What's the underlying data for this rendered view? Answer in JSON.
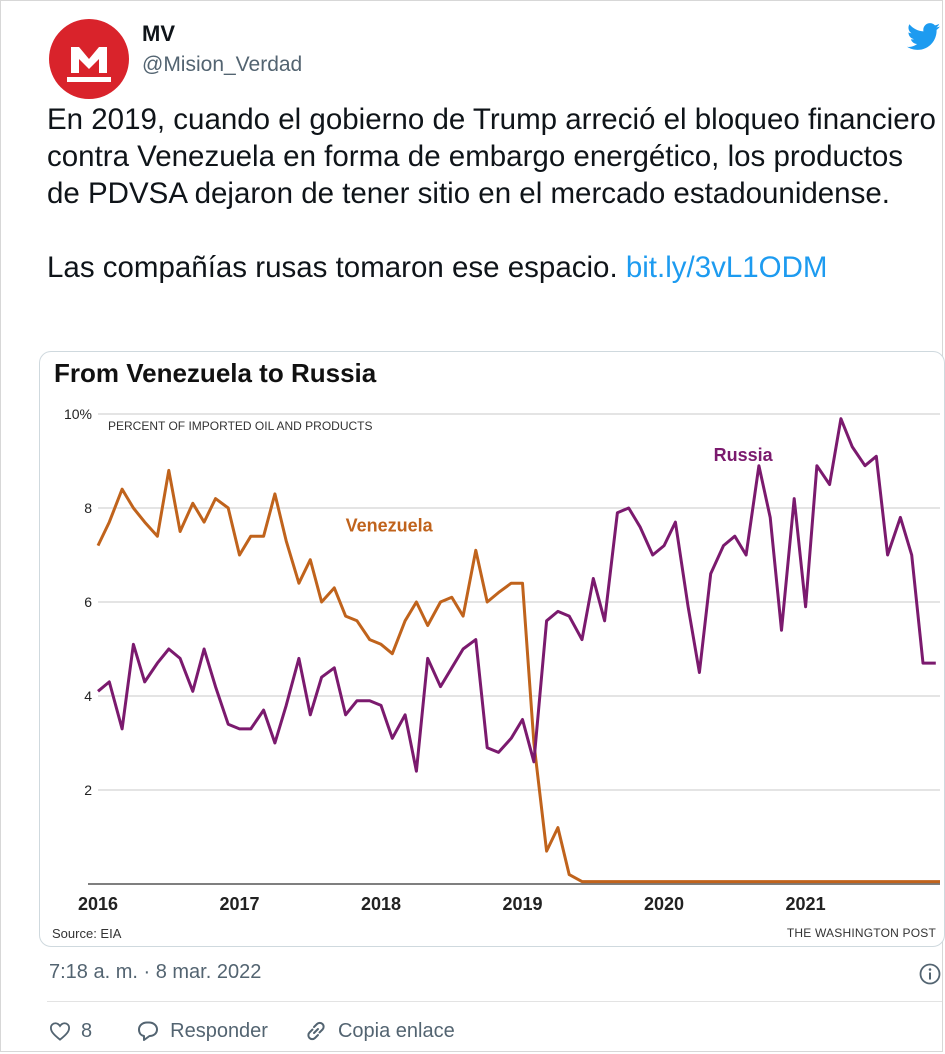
{
  "tweet": {
    "display_name": "MV",
    "handle": "@Mision_Verdad",
    "avatar_letter": "M",
    "brand_color": "#d9232b",
    "text_p1": "En 2019, cuando el gobierno de Trump arreció el bloqueo financiero contra Venezuela en forma de embargo energético, los productos de PDVSA dejaron de tener sitio en el mercado estadounidense.",
    "text_p2": "Las compañías rusas tomaron ese espacio.",
    "link": "bit.ly/3vL1ODM",
    "timestamp": "7:18 a. m. · 8 mar. 2022",
    "likes": "8",
    "reply_label": "Responder",
    "copy_link_label": "Copia enlace",
    "link_color": "#1d9bf0",
    "icons": {
      "platform": "twitter-bird-icon",
      "info": "info-icon",
      "like": "heart-icon",
      "reply": "reply-bubble-icon",
      "copy": "chain-link-icon"
    }
  },
  "chart_data": {
    "type": "line",
    "title": "From Venezuela to Russia",
    "ylabel": "PERCENT OF IMPORTED OIL AND PRODUCTS",
    "ylim": [
      0,
      10
    ],
    "xlim": [
      2016,
      2021.95
    ],
    "y_ticks": [
      2,
      4,
      6,
      8,
      10
    ],
    "y_tick_labels": [
      "2",
      "4",
      "6",
      "8",
      "10%"
    ],
    "x_ticks": [
      2016,
      2017,
      2018,
      2019,
      2020,
      2021
    ],
    "x_tick_labels": [
      "2016",
      "2017",
      "2018",
      "2019",
      "2020",
      "2021"
    ],
    "grid": true,
    "series": [
      {
        "name": "Venezuela",
        "color": "#c0631c",
        "x": [
          2016.0,
          2016.08,
          2016.17,
          2016.25,
          2016.33,
          2016.42,
          2016.5,
          2016.58,
          2016.67,
          2016.75,
          2016.83,
          2016.92,
          2017.0,
          2017.08,
          2017.17,
          2017.25,
          2017.33,
          2017.42,
          2017.5,
          2017.58,
          2017.67,
          2017.75,
          2017.83,
          2017.92,
          2018.0,
          2018.08,
          2018.17,
          2018.25,
          2018.33,
          2018.42,
          2018.5,
          2018.58,
          2018.67,
          2018.75,
          2018.83,
          2018.92,
          2019.0,
          2019.08,
          2019.17,
          2019.25,
          2019.33,
          2019.42,
          2019.5,
          2019.6,
          2019.75,
          2020.0,
          2020.5,
          2021.0,
          2021.5,
          2021.95
        ],
        "y": [
          7.2,
          7.7,
          8.4,
          8.0,
          7.7,
          7.4,
          8.8,
          7.5,
          8.1,
          7.7,
          8.2,
          8.0,
          7.0,
          7.4,
          7.4,
          8.3,
          7.3,
          6.4,
          6.9,
          6.0,
          6.3,
          5.7,
          5.6,
          5.2,
          5.1,
          4.9,
          5.6,
          6.0,
          5.5,
          6.0,
          6.1,
          5.7,
          7.1,
          6.0,
          6.2,
          6.4,
          6.4,
          3.0,
          0.7,
          1.2,
          0.2,
          0.05,
          0.05,
          0.05,
          0.05,
          0.05,
          0.05,
          0.05,
          0.05,
          0.05
        ]
      },
      {
        "name": "Russia",
        "color": "#7b1a6e",
        "x": [
          2016.0,
          2016.08,
          2016.17,
          2016.25,
          2016.33,
          2016.42,
          2016.5,
          2016.58,
          2016.67,
          2016.75,
          2016.83,
          2016.92,
          2017.0,
          2017.08,
          2017.17,
          2017.25,
          2017.33,
          2017.42,
          2017.5,
          2017.58,
          2017.67,
          2017.75,
          2017.83,
          2017.92,
          2018.0,
          2018.08,
          2018.17,
          2018.25,
          2018.33,
          2018.42,
          2018.5,
          2018.58,
          2018.67,
          2018.75,
          2018.83,
          2018.92,
          2019.0,
          2019.08,
          2019.17,
          2019.25,
          2019.33,
          2019.42,
          2019.5,
          2019.58,
          2019.67,
          2019.75,
          2019.83,
          2019.92,
          2020.0,
          2020.08,
          2020.17,
          2020.25,
          2020.33,
          2020.42,
          2020.5,
          2020.58,
          2020.67,
          2020.75,
          2020.83,
          2020.92,
          2021.0,
          2021.08,
          2021.17,
          2021.25,
          2021.33,
          2021.42,
          2021.5,
          2021.58,
          2021.67,
          2021.75,
          2021.83,
          2021.92
        ],
        "y": [
          4.1,
          4.3,
          3.3,
          5.1,
          4.3,
          4.7,
          5.0,
          4.8,
          4.1,
          5.0,
          4.2,
          3.4,
          3.3,
          3.3,
          3.7,
          3.0,
          3.8,
          4.8,
          3.6,
          4.4,
          4.6,
          3.6,
          3.9,
          3.9,
          3.8,
          3.1,
          3.6,
          2.4,
          4.8,
          4.2,
          4.6,
          5.0,
          5.2,
          2.9,
          2.8,
          3.1,
          3.5,
          2.6,
          5.6,
          5.8,
          5.7,
          5.2,
          6.5,
          5.6,
          7.9,
          8.0,
          7.6,
          7.0,
          7.2,
          7.7,
          5.9,
          4.5,
          6.6,
          7.2,
          7.4,
          7.0,
          8.9,
          7.8,
          5.4,
          8.2,
          5.9,
          8.9,
          8.5,
          9.9,
          9.3,
          8.9,
          9.1,
          7.0,
          7.8,
          7.0,
          4.7,
          4.7
        ]
      }
    ],
    "annotations": [
      {
        "text": "Russia",
        "x": 2020.35,
        "y": 9.0
      },
      {
        "text": "Venezuela",
        "x": 2017.75,
        "y": 7.5
      }
    ],
    "source": "Source: EIA",
    "credit": "THE WASHINGTON POST"
  }
}
